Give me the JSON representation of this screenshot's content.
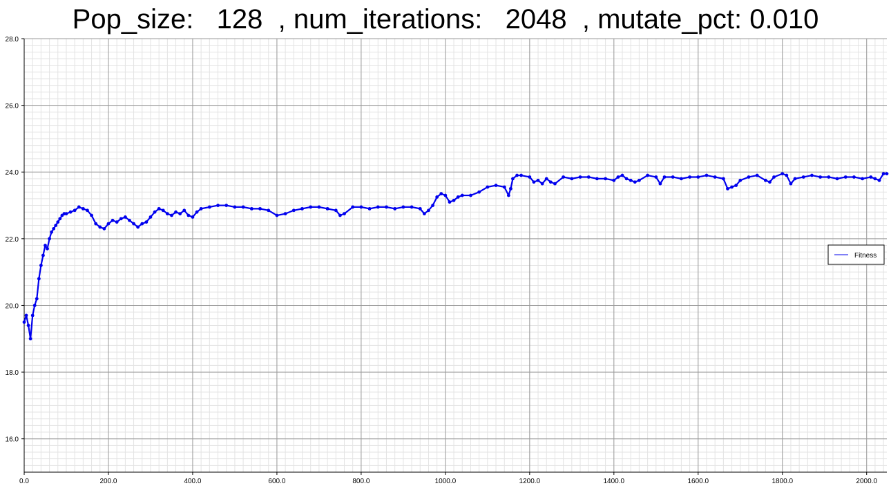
{
  "chart_data": {
    "type": "line",
    "title": "Pop_size:   128  , num_iterations:   2048  , mutate_pct: 0.010",
    "xlabel": "",
    "ylabel": "",
    "xlim": [
      0,
      2048
    ],
    "ylim": [
      15.0,
      28.0
    ],
    "x_ticks": [
      0,
      200,
      400,
      600,
      800,
      1000,
      1200,
      1400,
      1600,
      1800,
      2000
    ],
    "x_tick_labels": [
      "0.0",
      "200.0",
      "400.0",
      "600.0",
      "800.0",
      "1000.0",
      "1200.0",
      "1400.0",
      "1600.0",
      "1800.0",
      "2000.0"
    ],
    "y_ticks": [
      16,
      18,
      20,
      22,
      24,
      26,
      28
    ],
    "y_tick_labels": [
      "16.0",
      "18.0",
      "20.0",
      "22.0",
      "24.0",
      "26.0",
      "28.0"
    ],
    "grid": true,
    "legend_position": "right",
    "series": [
      {
        "name": "Fitness",
        "color": "#0000ee",
        "marker": "circle",
        "points": [
          [
            0,
            19.5
          ],
          [
            5,
            19.7
          ],
          [
            10,
            19.4
          ],
          [
            15,
            19.0
          ],
          [
            20,
            19.7
          ],
          [
            25,
            20.0
          ],
          [
            30,
            20.2
          ],
          [
            35,
            20.8
          ],
          [
            40,
            21.2
          ],
          [
            45,
            21.5
          ],
          [
            50,
            21.8
          ],
          [
            55,
            21.7
          ],
          [
            60,
            22.0
          ],
          [
            65,
            22.2
          ],
          [
            70,
            22.3
          ],
          [
            75,
            22.4
          ],
          [
            80,
            22.5
          ],
          [
            85,
            22.6
          ],
          [
            90,
            22.7
          ],
          [
            95,
            22.75
          ],
          [
            100,
            22.75
          ],
          [
            110,
            22.8
          ],
          [
            120,
            22.85
          ],
          [
            130,
            22.95
          ],
          [
            140,
            22.9
          ],
          [
            150,
            22.85
          ],
          [
            160,
            22.7
          ],
          [
            170,
            22.45
          ],
          [
            180,
            22.35
          ],
          [
            190,
            22.3
          ],
          [
            200,
            22.45
          ],
          [
            210,
            22.55
          ],
          [
            220,
            22.5
          ],
          [
            230,
            22.6
          ],
          [
            240,
            22.65
          ],
          [
            250,
            22.55
          ],
          [
            260,
            22.45
          ],
          [
            270,
            22.35
          ],
          [
            280,
            22.45
          ],
          [
            290,
            22.5
          ],
          [
            300,
            22.65
          ],
          [
            310,
            22.8
          ],
          [
            320,
            22.9
          ],
          [
            330,
            22.85
          ],
          [
            340,
            22.75
          ],
          [
            350,
            22.7
          ],
          [
            360,
            22.8
          ],
          [
            370,
            22.75
          ],
          [
            380,
            22.85
          ],
          [
            390,
            22.7
          ],
          [
            400,
            22.65
          ],
          [
            410,
            22.8
          ],
          [
            420,
            22.9
          ],
          [
            440,
            22.95
          ],
          [
            460,
            23.0
          ],
          [
            480,
            23.0
          ],
          [
            500,
            22.95
          ],
          [
            520,
            22.95
          ],
          [
            540,
            22.9
          ],
          [
            560,
            22.9
          ],
          [
            580,
            22.85
          ],
          [
            600,
            22.7
          ],
          [
            620,
            22.75
          ],
          [
            640,
            22.85
          ],
          [
            660,
            22.9
          ],
          [
            680,
            22.95
          ],
          [
            700,
            22.95
          ],
          [
            720,
            22.9
          ],
          [
            740,
            22.85
          ],
          [
            750,
            22.7
          ],
          [
            760,
            22.75
          ],
          [
            780,
            22.95
          ],
          [
            800,
            22.95
          ],
          [
            820,
            22.9
          ],
          [
            840,
            22.95
          ],
          [
            860,
            22.95
          ],
          [
            880,
            22.9
          ],
          [
            900,
            22.95
          ],
          [
            920,
            22.95
          ],
          [
            940,
            22.9
          ],
          [
            950,
            22.75
          ],
          [
            960,
            22.85
          ],
          [
            970,
            23.0
          ],
          [
            980,
            23.25
          ],
          [
            990,
            23.35
          ],
          [
            1000,
            23.3
          ],
          [
            1010,
            23.1
          ],
          [
            1020,
            23.15
          ],
          [
            1030,
            23.25
          ],
          [
            1040,
            23.3
          ],
          [
            1060,
            23.3
          ],
          [
            1080,
            23.4
          ],
          [
            1100,
            23.55
          ],
          [
            1120,
            23.6
          ],
          [
            1140,
            23.55
          ],
          [
            1150,
            23.3
          ],
          [
            1155,
            23.5
          ],
          [
            1160,
            23.8
          ],
          [
            1170,
            23.9
          ],
          [
            1180,
            23.9
          ],
          [
            1200,
            23.85
          ],
          [
            1210,
            23.7
          ],
          [
            1220,
            23.75
          ],
          [
            1230,
            23.65
          ],
          [
            1240,
            23.8
          ],
          [
            1250,
            23.7
          ],
          [
            1260,
            23.65
          ],
          [
            1280,
            23.85
          ],
          [
            1300,
            23.8
          ],
          [
            1320,
            23.85
          ],
          [
            1340,
            23.85
          ],
          [
            1360,
            23.8
          ],
          [
            1380,
            23.8
          ],
          [
            1400,
            23.75
          ],
          [
            1410,
            23.85
          ],
          [
            1420,
            23.9
          ],
          [
            1430,
            23.8
          ],
          [
            1440,
            23.75
          ],
          [
            1450,
            23.7
          ],
          [
            1460,
            23.75
          ],
          [
            1480,
            23.9
          ],
          [
            1500,
            23.85
          ],
          [
            1510,
            23.65
          ],
          [
            1520,
            23.85
          ],
          [
            1540,
            23.85
          ],
          [
            1560,
            23.8
          ],
          [
            1580,
            23.85
          ],
          [
            1600,
            23.85
          ],
          [
            1620,
            23.9
          ],
          [
            1640,
            23.85
          ],
          [
            1660,
            23.8
          ],
          [
            1670,
            23.5
          ],
          [
            1680,
            23.55
          ],
          [
            1690,
            23.6
          ],
          [
            1700,
            23.75
          ],
          [
            1720,
            23.85
          ],
          [
            1740,
            23.9
          ],
          [
            1760,
            23.75
          ],
          [
            1770,
            23.7
          ],
          [
            1780,
            23.85
          ],
          [
            1800,
            23.95
          ],
          [
            1810,
            23.9
          ],
          [
            1820,
            23.65
          ],
          [
            1830,
            23.8
          ],
          [
            1850,
            23.85
          ],
          [
            1870,
            23.9
          ],
          [
            1890,
            23.85
          ],
          [
            1910,
            23.85
          ],
          [
            1930,
            23.8
          ],
          [
            1950,
            23.85
          ],
          [
            1970,
            23.85
          ],
          [
            1990,
            23.8
          ],
          [
            2010,
            23.85
          ],
          [
            2020,
            23.8
          ],
          [
            2030,
            23.75
          ],
          [
            2040,
            23.95
          ],
          [
            2048,
            23.95
          ]
        ]
      }
    ]
  }
}
